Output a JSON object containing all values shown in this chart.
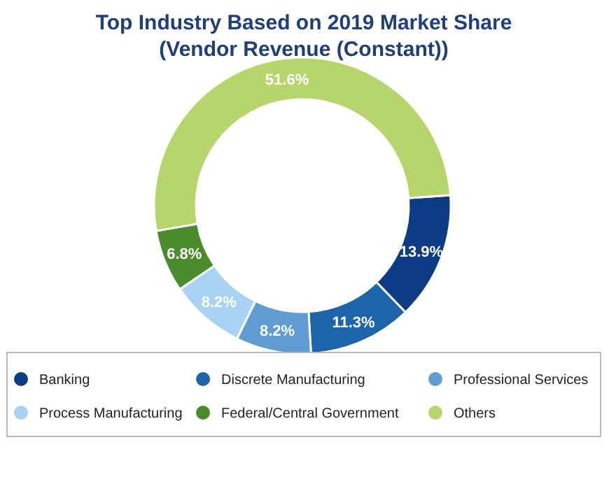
{
  "chart_data": {
    "type": "donut",
    "title": "Top Industry Based on 2019 Market Share (Vendor Revenue (Constant))",
    "categories": [
      "Banking",
      "Discrete Manufacturing",
      "Professional Services",
      "Process Manufacturing",
      "Federal/Central Government",
      "Others"
    ],
    "values": [
      13.9,
      11.3,
      8.2,
      8.2,
      6.8,
      51.6
    ],
    "colors": [
      "#0d3c87",
      "#1c65ab",
      "#5e9cd3",
      "#a9d3f3",
      "#4a8c2a",
      "#b6d56b"
    ],
    "value_labels": [
      "13.9%",
      "11.3%",
      "8.2%",
      "8.2%",
      "6.8%",
      "51.6%"
    ],
    "legend": "bottom"
  }
}
